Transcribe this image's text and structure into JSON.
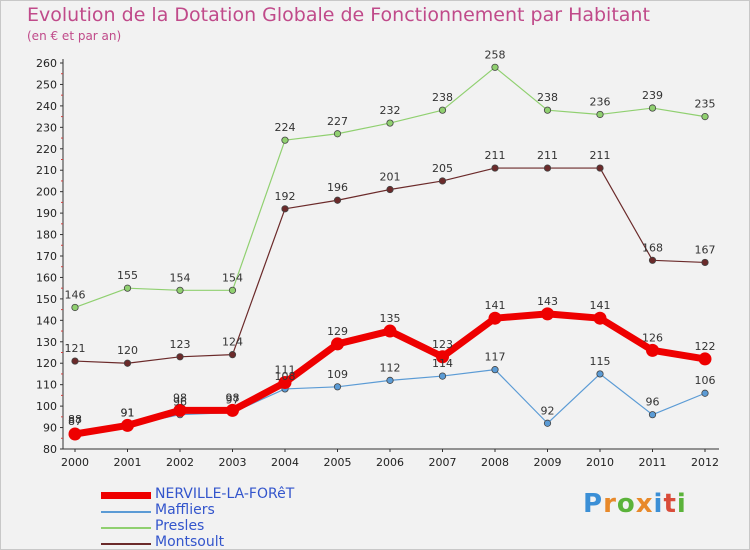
{
  "title": "Evolution de la Dotation Globale de Fonctionnement par Habitant",
  "subtitle": "(en € et par an)",
  "logo": {
    "text": "Proxiti",
    "colors": [
      "#3b8fd6",
      "#e8892a",
      "#5bb33a",
      "#e8892a",
      "#3b8fd6",
      "#d94c3a",
      "#5bb33a"
    ]
  },
  "chart_data": {
    "type": "line",
    "x": [
      "2000",
      "2001",
      "2002",
      "2003",
      "2004",
      "2005",
      "2006",
      "2007",
      "2008",
      "2009",
      "2010",
      "2011",
      "2012"
    ],
    "ylim": [
      80,
      260
    ],
    "yticks": [
      80,
      90,
      100,
      110,
      120,
      130,
      140,
      150,
      160,
      170,
      180,
      190,
      200,
      210,
      220,
      230,
      240,
      250,
      260
    ],
    "grid": false,
    "legend_position": "bottom-left",
    "series": [
      {
        "name": "NERVILLE-LA-FORêT",
        "color": "#ee0000",
        "values": [
          87,
          91,
          98,
          98,
          111,
          129,
          135,
          123,
          141,
          143,
          141,
          126,
          122
        ],
        "labels": [
          "87",
          "91",
          "98",
          "98",
          "111",
          "129",
          "135",
          "123",
          "141",
          "143",
          "141",
          "126",
          "122"
        ],
        "bold": true
      },
      {
        "name": "Maffliers",
        "color": "#5b9bd5",
        "values": [
          88,
          91,
          96,
          97,
          108,
          109,
          112,
          114,
          117,
          92,
          115,
          96,
          106
        ],
        "labels": [
          "88",
          "91",
          "96",
          "97",
          "108",
          "109",
          "112",
          "114",
          "117",
          "92",
          "115",
          "96",
          "106"
        ],
        "bold": false
      },
      {
        "name": "Presles",
        "color": "#90d070",
        "values": [
          146,
          155,
          154,
          154,
          224,
          227,
          232,
          238,
          258,
          238,
          236,
          239,
          235
        ],
        "labels": [
          "146",
          "155",
          "154",
          "154",
          "224",
          "227",
          "232",
          "238",
          "258",
          "238",
          "236",
          "239",
          "235"
        ],
        "bold": false
      },
      {
        "name": "Montsoult",
        "color": "#6b2a2a",
        "values": [
          121,
          120,
          123,
          124,
          192,
          196,
          201,
          205,
          211,
          211,
          211,
          168,
          167
        ],
        "labels": [
          "121",
          "120",
          "123",
          "124",
          "192",
          "196",
          "201",
          "205",
          "211",
          "211",
          "211",
          "168",
          "167"
        ],
        "bold": false
      }
    ]
  }
}
